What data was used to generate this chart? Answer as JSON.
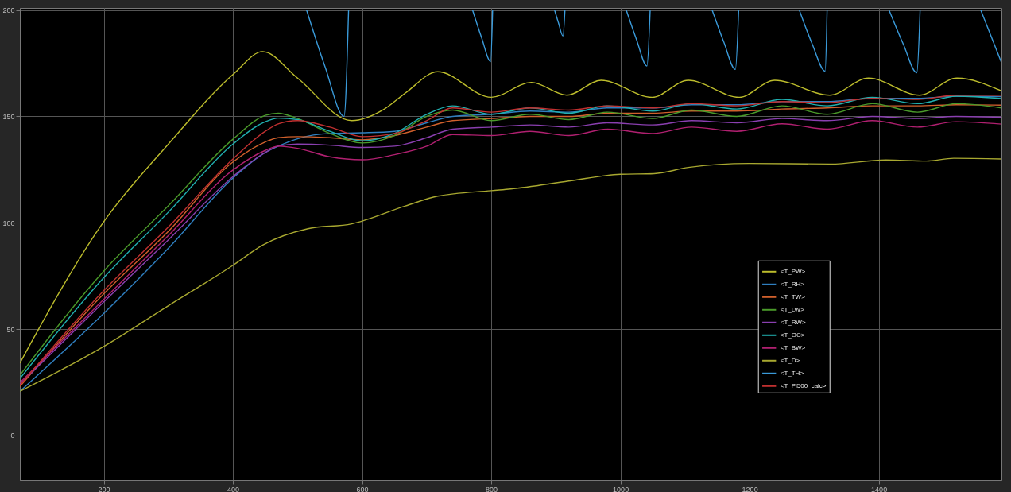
{
  "chart_data": {
    "type": "line",
    "x": [
      70,
      200,
      300,
      400,
      450,
      470,
      500,
      550,
      600,
      650,
      700,
      740,
      800,
      860,
      920,
      980,
      1050,
      1110,
      1180,
      1250,
      1320,
      1390,
      1460,
      1520,
      1590
    ],
    "xlim": [
      70,
      1590
    ],
    "ylim": [
      -21,
      201
    ],
    "xticks": [
      200,
      400,
      600,
      800,
      1000,
      1200,
      1400
    ],
    "yticks": [
      0,
      50,
      100,
      150,
      200
    ],
    "grid": true,
    "legend": "right",
    "series": [
      {
        "name": "<T_PW>",
        "color": "#bcbc2c",
        "x": [
          70,
          201,
          300,
          401,
          446,
          500,
          584,
          632,
          667,
          717,
          800,
          862,
          917,
          970,
          1049,
          1105,
          1184,
          1239,
          1324,
          1384,
          1463,
          1521,
          1590
        ],
        "values": [
          34,
          101,
          137,
          170,
          180.5,
          168,
          148,
          153,
          161,
          171,
          159,
          166,
          160,
          167,
          159,
          167,
          159,
          167,
          160,
          168,
          160,
          168,
          162
        ]
      },
      {
        "name": "<T_RH>",
        "color": "#2f7fc0",
        "values": [
          20.7,
          57.4,
          88,
          121,
          133,
          136,
          139.5,
          142,
          142.3,
          143,
          147,
          150,
          151,
          152.5,
          152,
          154,
          154,
          155.5,
          155.5,
          157,
          157,
          158.5,
          158.5,
          159.5,
          159.3
        ]
      },
      {
        "name": "<T_TW>",
        "color": "#d0602c",
        "values": [
          23,
          66.6,
          96,
          128.6,
          138,
          140,
          140.5,
          140,
          139,
          141,
          145,
          148,
          149,
          150,
          150,
          151.5,
          151.5,
          152.5,
          152.5,
          153.5,
          154,
          155,
          155,
          155.5,
          155.3
        ]
      },
      {
        "name": "<T_LW>",
        "color": "#4a9a2a",
        "values": [
          28.3,
          77.3,
          108,
          139.3,
          150.5,
          151.5,
          149,
          142,
          137.5,
          141,
          150,
          153,
          148,
          151,
          148.5,
          152,
          149,
          153,
          150,
          155,
          151,
          156,
          152,
          156,
          154
        ]
      },
      {
        "name": "<T_RW>",
        "color": "#8a3fb0",
        "values": [
          24,
          62.8,
          92,
          121.7,
          133,
          136,
          137,
          136.5,
          135.4,
          136,
          140,
          144,
          145,
          146,
          145,
          147,
          146,
          148,
          147,
          149,
          148,
          150,
          149,
          150,
          149.6
        ]
      },
      {
        "name": "<T_OC>",
        "color": "#20b0b0",
        "values": [
          26.7,
          74.2,
          105,
          137,
          147.5,
          149.2,
          148.5,
          143,
          138.5,
          142,
          151,
          155,
          151,
          154,
          151.5,
          155,
          152.5,
          156,
          153.5,
          158,
          155,
          159,
          156,
          159.5,
          158.4
        ]
      },
      {
        "name": "<T_BW>",
        "color": "#b02070",
        "values": [
          24.8,
          64,
          94,
          124.8,
          134,
          136,
          135,
          131,
          129.6,
          132,
          136,
          141.5,
          141,
          143,
          141,
          144,
          142,
          145,
          143,
          146.5,
          144,
          148,
          145,
          147.5,
          146.4
        ]
      },
      {
        "name": "<T_D>",
        "color": "#a8a830",
        "x": [
          70,
          201,
          300,
          401,
          446,
          516,
          584,
          667,
          717,
          800,
          830,
          920,
          1000,
          1052,
          1105,
          1199,
          1325,
          1411,
          1474,
          1516,
          1590
        ],
        "values": [
          20.7,
          42,
          61,
          80.2,
          89.5,
          97.2,
          99.5,
          107.9,
          112.5,
          115.1,
          115.9,
          119.6,
          122.8,
          123.1,
          126,
          127.9,
          127.6,
          129.5,
          129,
          130.3,
          130
        ]
      },
      {
        "name": "<T_TH>",
        "color": "#3a9ad9",
        "x": [
          514,
          543,
          572,
          579,
          590,
          771,
          785,
          799,
          802,
          850,
          898,
          904,
          911,
          914,
          950,
          1009,
          1025,
          1041,
          1046,
          1100,
          1142,
          1160,
          1178,
          1183,
          1230,
          1277,
          1297,
          1317,
          1320,
          1370,
          1416,
          1438,
          1459,
          1464,
          1510,
          1558,
          1590
        ],
        "values": [
          200,
          173,
          150,
          200,
          null,
          200,
          187,
          175.8,
          200,
          null,
          200,
          194,
          187.8,
          200,
          null,
          200,
          186,
          173.7,
          200,
          null,
          200,
          185,
          172.1,
          200,
          null,
          200,
          184,
          171.3,
          200,
          null,
          200,
          184,
          170.5,
          200,
          null,
          200,
          175.3
        ]
      },
      {
        "name": "<T_Pl500_calc>",
        "color": "#c03030",
        "values": [
          23.5,
          68.1,
          98,
          130,
          143,
          146.5,
          148,
          145,
          140.5,
          142,
          148,
          154,
          152,
          154,
          153,
          155,
          154,
          156,
          155,
          157,
          156.5,
          158.5,
          158,
          160,
          160
        ]
      }
    ]
  }
}
